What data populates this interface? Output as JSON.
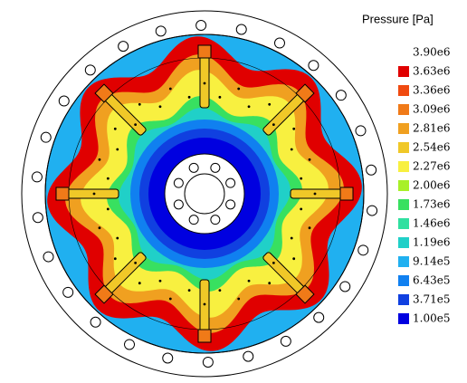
{
  "legend": {
    "title": "Pressure [Pa]",
    "top_label": "3.90e6",
    "levels": [
      {
        "label": "3.63e6",
        "color": "#e00000"
      },
      {
        "label": "3.36e6",
        "color": "#f04a10"
      },
      {
        "label": "3.09e6",
        "color": "#f07a18"
      },
      {
        "label": "2.81e6",
        "color": "#f0a020"
      },
      {
        "label": "2.54e6",
        "color": "#f0c828"
      },
      {
        "label": "2.27e6",
        "color": "#f8f040"
      },
      {
        "label": "2.00e6",
        "color": "#a8f028"
      },
      {
        "label": "1.73e6",
        "color": "#38e060"
      },
      {
        "label": "1.46e6",
        "color": "#30e0a0"
      },
      {
        "label": "1.19e6",
        "color": "#20d0c8"
      },
      {
        "label": "9.14e5",
        "color": "#20b0f0"
      },
      {
        "label": "6.43e5",
        "color": "#1080f0"
      },
      {
        "label": "3.71e5",
        "color": "#1040e0"
      },
      {
        "label": "1.00e5",
        "color": "#0000e0"
      }
    ]
  }
}
